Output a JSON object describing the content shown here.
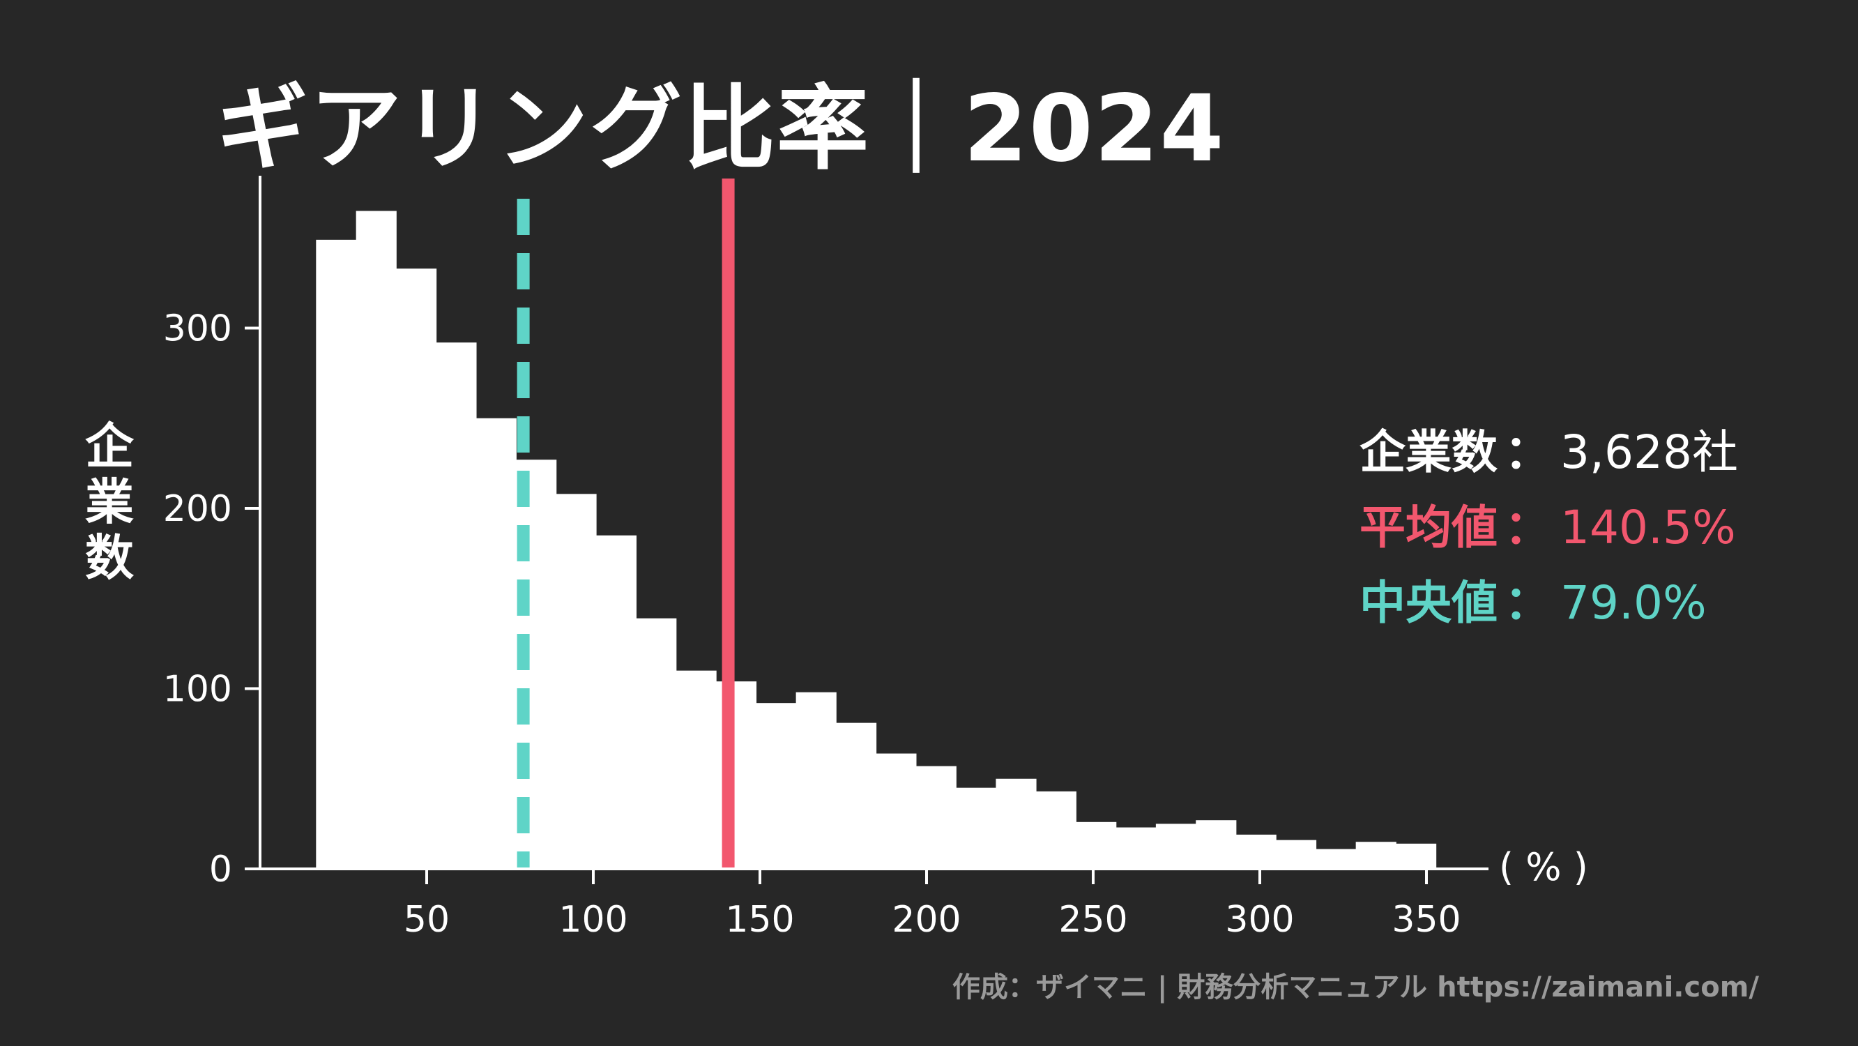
{
  "title": "ギアリング比率｜2024",
  "stats": {
    "count_label": "企業数",
    "count_value": "3,628社",
    "mean_label": "平均値",
    "mean_value": "140.5%",
    "median_label": "中央値",
    "median_value": "79.0%",
    "separator": "："
  },
  "credit": "作成：ザイマニ | 財務分析マニュアル https://zaimani.com/",
  "colors": {
    "background": "#272727",
    "bars": "#ffffff",
    "mean": "#f2576e",
    "median": "#5fd4c7"
  },
  "chart_data": {
    "type": "bar",
    "title": "ギアリング比率｜2024",
    "ylabel": "企業数",
    "xlabel": "( % )",
    "xlim": [
      0,
      380
    ],
    "ylim": [
      0,
      380
    ],
    "xticks": [
      50,
      100,
      150,
      200,
      250,
      300,
      350
    ],
    "yticks": [
      0,
      100,
      200,
      300
    ],
    "bin_width": 12,
    "bin_start": 16.8,
    "values": [
      349,
      365,
      333,
      292,
      250,
      227,
      208,
      185,
      139,
      110,
      104,
      92,
      98,
      81,
      64,
      57,
      45,
      50,
      43,
      26,
      23,
      25,
      27,
      19,
      16,
      11,
      15,
      14
    ],
    "mean": 140.5,
    "median": 79.0,
    "grid": false,
    "legend": "right"
  }
}
